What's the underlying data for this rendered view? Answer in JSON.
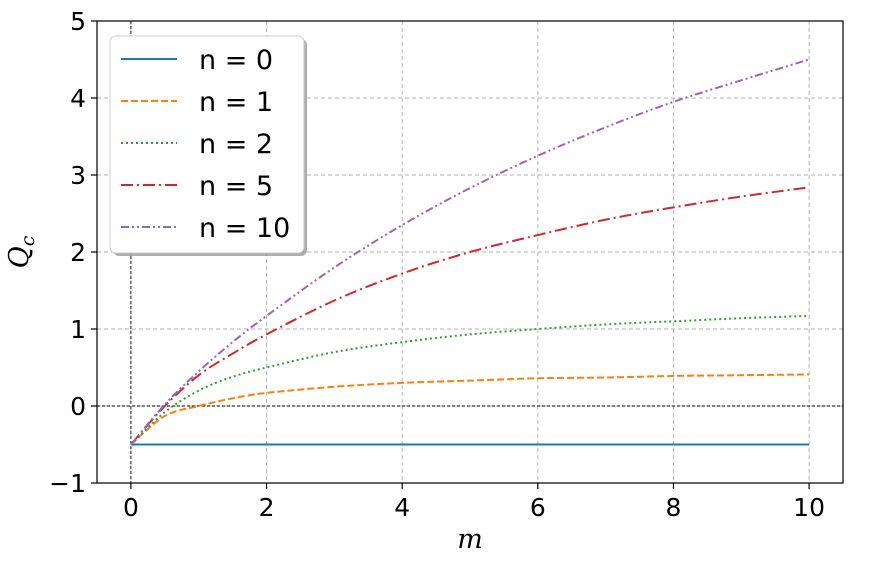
{
  "chart_data": {
    "type": "line",
    "title": "",
    "xlabel": "m",
    "ylabel": "Q",
    "ylabel_subscript": "c",
    "xlim": [
      -0.5,
      10.5
    ],
    "ylim": [
      -1,
      5
    ],
    "xticks": [
      0,
      2,
      4,
      6,
      8,
      10
    ],
    "xtick_labels": [
      "0",
      "2",
      "4",
      "6",
      "8",
      "10"
    ],
    "yticks": [
      -1,
      0,
      1,
      2,
      3,
      4,
      5
    ],
    "ytick_labels": [
      "−1",
      "0",
      "1",
      "2",
      "3",
      "4",
      "5"
    ],
    "grid": true,
    "legend_position": "top-left",
    "reference_lines": {
      "x": 0,
      "y": 0
    },
    "x": [
      0,
      0.5,
      1,
      1.5,
      2,
      3,
      4,
      5,
      6,
      7,
      8,
      9,
      10
    ],
    "series": [
      {
        "name": "n = 0",
        "color": "#1f77b4",
        "style": "solid",
        "values": [
          -0.5,
          -0.5,
          -0.5,
          -0.5,
          -0.5,
          -0.5,
          -0.5,
          -0.5,
          -0.5,
          -0.5,
          -0.5,
          -0.5,
          -0.5
        ]
      },
      {
        "name": "n = 1",
        "color": "#ff7f0e",
        "style": "dashed",
        "values": [
          -0.5,
          -0.13,
          0.0,
          0.1,
          0.17,
          0.25,
          0.3,
          0.33,
          0.36,
          0.37,
          0.39,
          0.4,
          0.41
        ]
      },
      {
        "name": "n = 2",
        "color": "#2ca02c",
        "style": "dotted",
        "values": [
          -0.5,
          -0.08,
          0.2,
          0.38,
          0.5,
          0.7,
          0.83,
          0.93,
          1.0,
          1.06,
          1.1,
          1.14,
          1.17
        ]
      },
      {
        "name": "n = 5",
        "color": "#d62728",
        "style": "dashdot",
        "values": [
          -0.5,
          0.0,
          0.4,
          0.68,
          0.93,
          1.37,
          1.72,
          2.0,
          2.22,
          2.42,
          2.58,
          2.72,
          2.84
        ]
      },
      {
        "name": "n = 10",
        "color": "#9467bd",
        "style": "dashdotdot",
        "values": [
          -0.5,
          0.02,
          0.45,
          0.83,
          1.17,
          1.8,
          2.35,
          2.83,
          3.25,
          3.62,
          3.95,
          4.23,
          4.5
        ]
      }
    ]
  }
}
